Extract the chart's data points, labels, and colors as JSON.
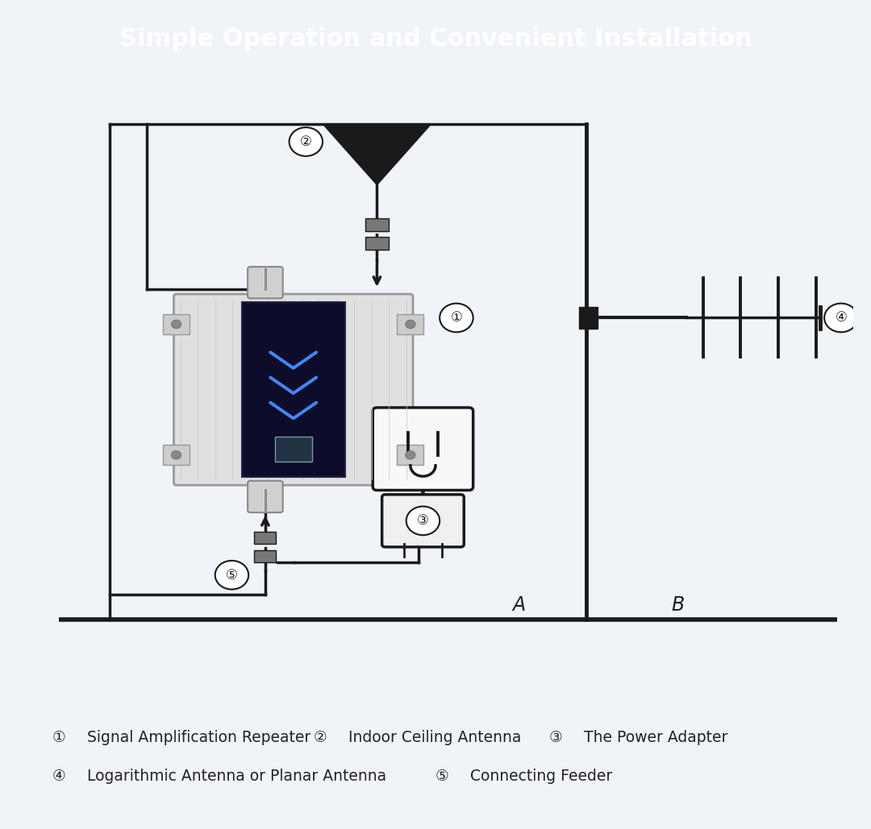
{
  "title": "Simple Operation and Convenient Installation",
  "title_bg_color": "#4a90d9",
  "title_text_color": "#ffffff",
  "bg_color": "#f0f4f8",
  "diagram_bg": "#ffffff",
  "labels": {
    "1": "Signal Amplification Repeater",
    "2": "Indoor Ceiling Antenna",
    "3": "The Power Adapter",
    "4": "Logarithmic Antenna or Planar Antenna",
    "5": "Connecting Feeder"
  },
  "label_A": "A",
  "label_B": "B",
  "line_color": "#1a1a1a",
  "line_width": 2.5
}
